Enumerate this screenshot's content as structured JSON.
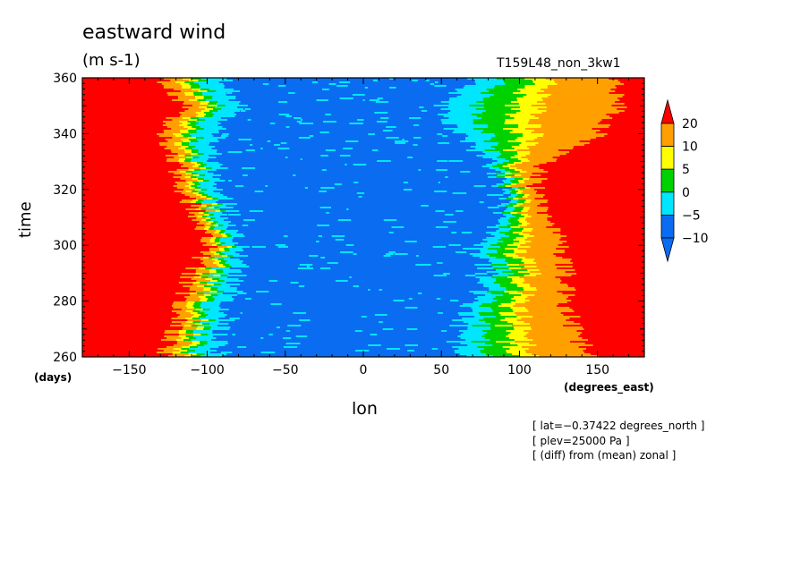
{
  "header": {
    "title": "eastward wind",
    "units": "(m s-1)",
    "run": "T159L48_non_3kw1"
  },
  "chart_data": {
    "type": "heatmap",
    "xlabel": "lon",
    "ylabel": "time",
    "xunit": "(degrees_east)",
    "yunit": "(days)",
    "xlim": [
      -180,
      180
    ],
    "ylim": [
      260,
      360
    ],
    "xticks": [
      -150,
      -100,
      -50,
      0,
      50,
      100,
      150
    ],
    "xtick_labels": [
      "−150",
      "−100",
      "−50",
      "0",
      "50",
      "100",
      "150"
    ],
    "yticks": [
      260,
      280,
      300,
      320,
      340,
      360
    ],
    "ytick_labels": [
      "260",
      "280",
      "300",
      "320",
      "340",
      "360"
    ],
    "colorbar": {
      "levels": [
        -10,
        -5,
        0,
        5,
        10,
        20
      ],
      "labels": [
        "−10",
        "−5",
        "0",
        "5",
        "10",
        "20"
      ],
      "colors": [
        "#0a6cf0",
        "#00e6ff",
        "#00d200",
        "#ffff00",
        "#ffa000",
        "#ff0000"
      ],
      "below_color": "#0a6cf0",
      "above_color": "#ff0000"
    },
    "description_pattern": {
      "left_east_edge_lon": [
        [
          260,
          -130
        ],
        [
          270,
          -120
        ],
        [
          280,
          -115
        ],
        [
          290,
          -110
        ],
        [
          300,
          -100
        ],
        [
          310,
          -105
        ],
        [
          320,
          -115
        ],
        [
          330,
          -120
        ],
        [
          340,
          -130
        ],
        [
          350,
          -115
        ],
        [
          360,
          -130
        ]
      ],
      "left_blue_edge_lon": [
        [
          260,
          -95
        ],
        [
          270,
          -90
        ],
        [
          280,
          -85
        ],
        [
          290,
          -80
        ],
        [
          300,
          -80
        ],
        [
          310,
          -85
        ],
        [
          320,
          -90
        ],
        [
          330,
          -95
        ],
        [
          340,
          -95
        ],
        [
          350,
          -80
        ],
        [
          360,
          -90
        ]
      ],
      "right_blue_edge_lon": [
        [
          260,
          60
        ],
        [
          270,
          60
        ],
        [
          280,
          70
        ],
        [
          290,
          80
        ],
        [
          300,
          70
        ],
        [
          310,
          90
        ],
        [
          320,
          90
        ],
        [
          330,
          80
        ],
        [
          340,
          60
        ],
        [
          350,
          50
        ],
        [
          360,
          70
        ]
      ],
      "right_red_edge_lon": [
        [
          260,
          145
        ],
        [
          270,
          135
        ],
        [
          280,
          130
        ],
        [
          290,
          130
        ],
        [
          300,
          125
        ],
        [
          310,
          120
        ],
        [
          320,
          110
        ],
        [
          330,
          115
        ],
        [
          340,
          150
        ],
        [
          350,
          165
        ],
        [
          360,
          160
        ]
      ]
    },
    "annotations": [
      "[ lat=−0.37422 degrees_north ]",
      "[ plev=25000 Pa ]",
      "[ (diff) from (mean) zonal ]"
    ]
  }
}
